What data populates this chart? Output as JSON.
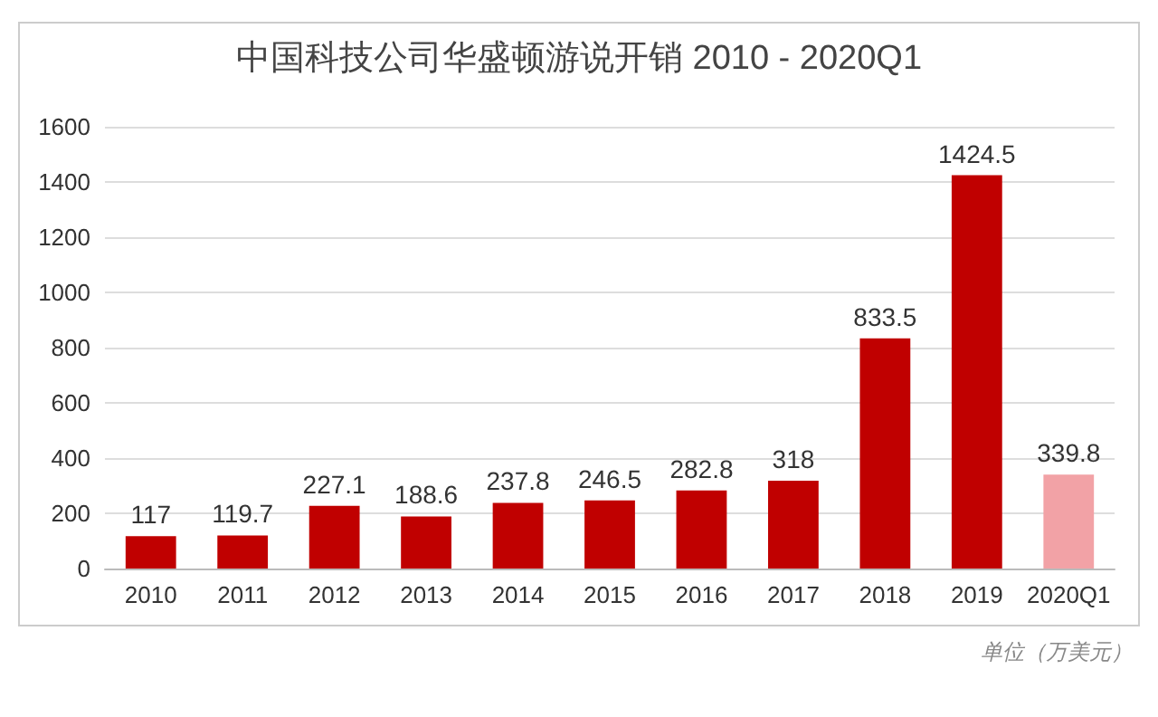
{
  "chart_data": {
    "type": "bar",
    "title": "中国科技公司华盛顿游说开销 2010 - 2020Q1",
    "categories": [
      "2010",
      "2011",
      "2012",
      "2013",
      "2014",
      "2015",
      "2016",
      "2017",
      "2018",
      "2019",
      "2020Q1"
    ],
    "values": [
      117,
      119.7,
      227.1,
      188.6,
      237.8,
      246.5,
      282.8,
      318,
      833.5,
      1424.5,
      339.8
    ],
    "colors": [
      "#c00000",
      "#c00000",
      "#c00000",
      "#c00000",
      "#c00000",
      "#c00000",
      "#c00000",
      "#c00000",
      "#c00000",
      "#c00000",
      "#f2a2a6"
    ],
    "ylim": [
      0,
      1600
    ],
    "yticks": [
      0,
      200,
      400,
      600,
      800,
      1000,
      1200,
      1400,
      1600
    ],
    "grid": "y",
    "data_labels": true,
    "annotations": [
      "单位（万美元）"
    ]
  }
}
